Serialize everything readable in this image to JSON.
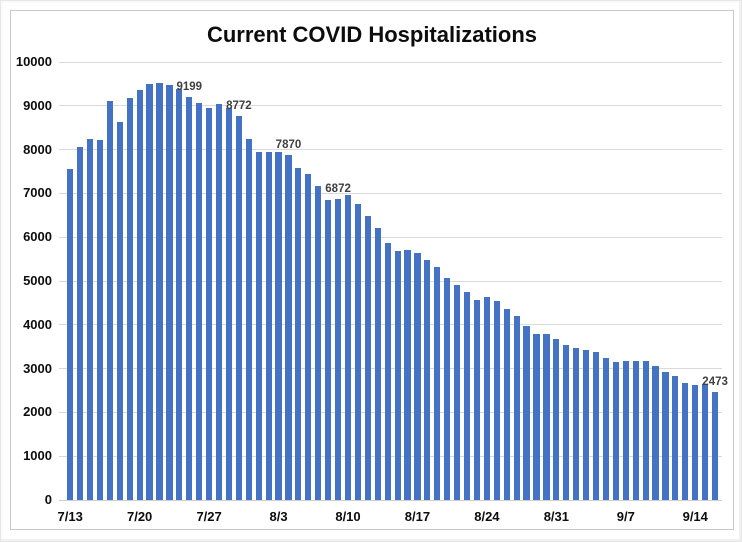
{
  "title": "Current COVID Hospitalizations",
  "colors": {
    "bar": "#4472C4",
    "gridline": "#D9D9D9",
    "axis_text": "#0D0D0D",
    "data_label_text": "#404040",
    "card_border": "#C9C9C9"
  },
  "chart_data": {
    "type": "bar",
    "title": "Current COVID Hospitalizations",
    "xlabel": "",
    "ylabel": "",
    "ylim": [
      0,
      10000
    ],
    "y_tick_step": 1000,
    "y_tick_labels": [
      "0",
      "1000",
      "2000",
      "3000",
      "4000",
      "5000",
      "6000",
      "7000",
      "8000",
      "9000",
      "10000"
    ],
    "grid": "horizontal",
    "legend": "none",
    "categories": [
      "7/13",
      "7/14",
      "7/15",
      "7/16",
      "7/17",
      "7/18",
      "7/19",
      "7/20",
      "7/21",
      "7/22",
      "7/23",
      "7/24",
      "7/25",
      "7/26",
      "7/27",
      "7/28",
      "7/29",
      "7/30",
      "7/31",
      "8/1",
      "8/2",
      "8/3",
      "8/4",
      "8/5",
      "8/6",
      "8/7",
      "8/8",
      "8/9",
      "8/10",
      "8/11",
      "8/12",
      "8/13",
      "8/14",
      "8/15",
      "8/16",
      "8/17",
      "8/18",
      "8/19",
      "8/20",
      "8/21",
      "8/22",
      "8/23",
      "8/24",
      "8/25",
      "8/26",
      "8/27",
      "8/28",
      "8/29",
      "8/30",
      "8/31",
      "9/1",
      "9/2",
      "9/3",
      "9/4",
      "9/5",
      "9/6",
      "9/7",
      "9/8",
      "9/9",
      "9/10",
      "9/11",
      "9/12",
      "9/13",
      "9/14",
      "9/15",
      "9/16"
    ],
    "values": [
      7550,
      8060,
      8250,
      8220,
      9120,
      8630,
      9170,
      9350,
      9500,
      9510,
      9480,
      9390,
      9199,
      9060,
      8950,
      9030,
      8940,
      8772,
      8240,
      7950,
      7950,
      7940,
      7870,
      7590,
      7450,
      7180,
      6850,
      6872,
      6960,
      6760,
      6480,
      6200,
      5870,
      5680,
      5710,
      5640,
      5470,
      5330,
      5070,
      4920,
      4750,
      4560,
      4640,
      4540,
      4370,
      4210,
      3970,
      3780,
      3800,
      3680,
      3550,
      3470,
      3420,
      3370,
      3250,
      3160,
      3170,
      3170,
      3180,
      3050,
      2920,
      2820,
      2670,
      2630,
      2640,
      2473
    ],
    "x_tick_indices": [
      0,
      7,
      14,
      21,
      28,
      35,
      42,
      49,
      56,
      63
    ],
    "x_tick_labels": [
      "7/13",
      "7/20",
      "7/27",
      "8/3",
      "8/10",
      "8/17",
      "8/24",
      "8/31",
      "9/7",
      "9/14"
    ],
    "data_labels": [
      {
        "index": 12,
        "text": "9199"
      },
      {
        "index": 17,
        "text": "8772"
      },
      {
        "index": 22,
        "text": "7870"
      },
      {
        "index": 27,
        "text": "6872"
      },
      {
        "index": 65,
        "text": "2473"
      }
    ]
  }
}
